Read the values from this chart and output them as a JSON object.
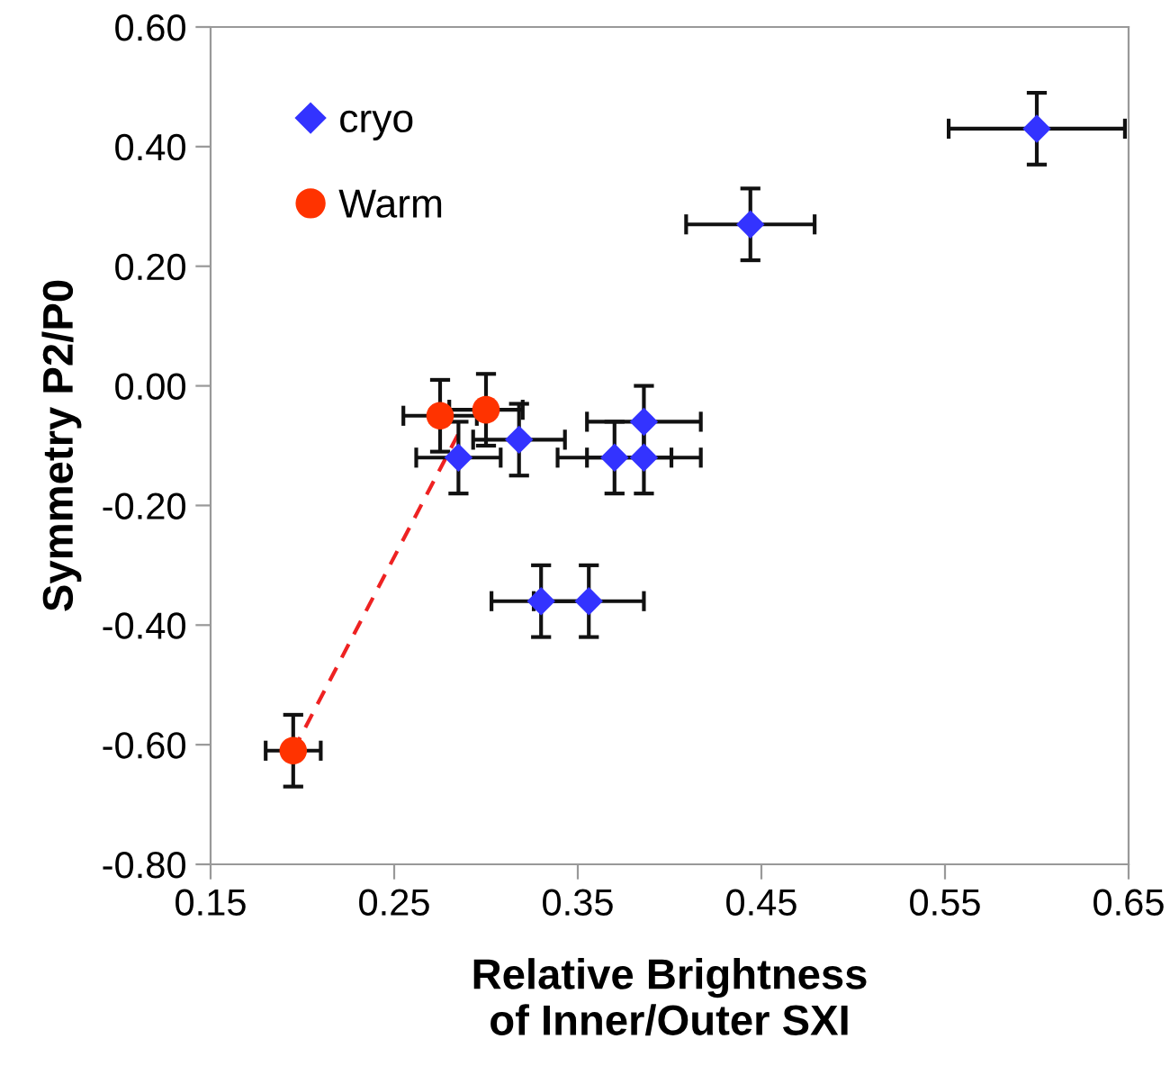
{
  "chart_data": {
    "type": "scatter",
    "xlabel": "Relative Brightness\nof Inner/Outer SXI",
    "ylabel": "Symmetry P2/P0",
    "xlim": [
      0.15,
      0.65
    ],
    "xticks": [
      {
        "value": 0.15,
        "label": "0.15"
      },
      {
        "value": 0.25,
        "label": "0.25"
      },
      {
        "value": 0.35,
        "label": "0.35"
      },
      {
        "value": 0.45,
        "label": "0.45"
      },
      {
        "value": 0.55,
        "label": "0.55"
      },
      {
        "value": 0.65,
        "label": "0.65"
      }
    ],
    "ylim": [
      -0.8,
      0.6
    ],
    "yticks": [
      {
        "value": -0.8,
        "label": "-0.80"
      },
      {
        "value": -0.6,
        "label": "-0.60"
      },
      {
        "value": -0.4,
        "label": "-0.40"
      },
      {
        "value": -0.2,
        "label": "-0.20"
      },
      {
        "value": 0,
        "label": "0.00"
      },
      {
        "value": 0.2,
        "label": "0.20"
      },
      {
        "value": 0.4,
        "label": "0.40"
      },
      {
        "value": 0.6,
        "label": "0.60"
      }
    ],
    "grid": false,
    "legend": "top left",
    "series": [
      {
        "type": "line",
        "color": "#ee2222",
        "line_style": "dashed",
        "marker": "none",
        "x": [
          0.195,
          0.285
        ],
        "values": [
          -0.61,
          -0.08
        ]
      },
      {
        "name": "cryo",
        "color": "#3333ff",
        "marker": "diamond",
        "x": [
          0.6,
          0.444,
          0.285,
          0.318,
          0.386,
          0.37,
          0.386,
          0.33,
          0.356
        ],
        "values": [
          0.43,
          0.27,
          -0.12,
          -0.09,
          -0.06,
          -0.12,
          -0.12,
          -0.36,
          -0.36
        ],
        "errors": [
          0.06,
          0.06,
          0.06,
          0.06,
          0.06,
          0.06,
          0.06,
          0.06,
          0.06
        ],
        "xerrors": [
          0.048,
          0.035,
          0.023,
          0.025,
          0.031,
          0.031,
          0.031,
          0.027,
          0.03
        ]
      },
      {
        "name": "Warm",
        "color": "#ff3300",
        "marker": "circle",
        "x": [
          0.275,
          0.3,
          0.195
        ],
        "values": [
          -0.05,
          -0.04,
          -0.61
        ],
        "errors": [
          0.06,
          0.06,
          0.06
        ],
        "xerrors": [
          0.02,
          0.02,
          0.015
        ]
      }
    ]
  }
}
